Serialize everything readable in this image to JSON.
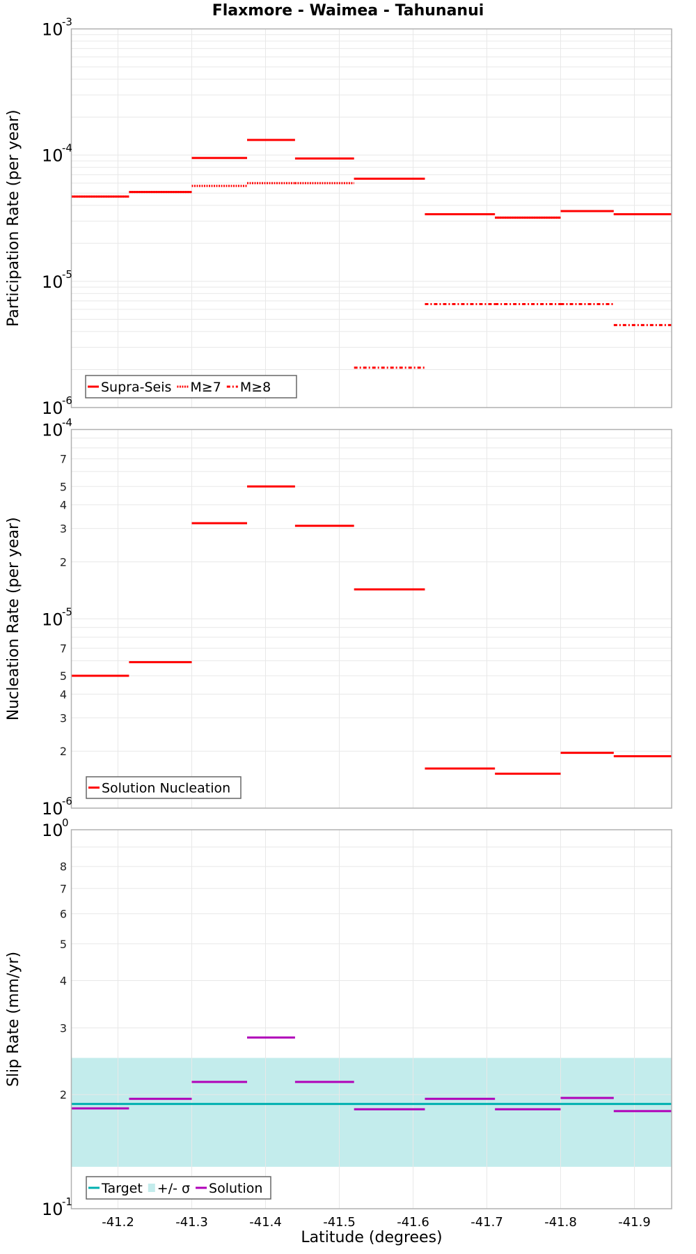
{
  "figure": {
    "title": "Flaxmore - Waimea - Tahunanui",
    "xlabel": "Latitude (degrees)",
    "x_ticks": [
      "-41.2",
      "-41.3",
      "-41.4",
      "-41.5",
      "-41.6",
      "-41.7",
      "-41.8",
      "-41.9"
    ]
  },
  "colors": {
    "supra_seis": "#ff0000",
    "target": "#00b0b0",
    "sigma_band": "#c3ecec",
    "solution_slip": "#b000b8",
    "grid": "#e8e8e8",
    "frame": "#b0b0b0"
  },
  "chart_data": [
    {
      "type": "line",
      "name": "participation",
      "title": "Flaxmore - Waimea - Tahunanui",
      "xlabel": "Latitude (degrees)",
      "ylabel": "Participation Rate (per year)",
      "yscale": "log",
      "ylim": [
        1e-06,
        0.001
      ],
      "xlim": [
        -41.137,
        -41.95
      ],
      "y_tick_labels": [
        {
          "base": "10",
          "exp": "-3"
        },
        {
          "base": "10",
          "exp": "-4"
        },
        {
          "base": "10",
          "exp": "-5"
        },
        {
          "base": "10",
          "exp": "-6"
        }
      ],
      "grid": true,
      "legend_position": "lower left",
      "legend": [
        "Supra-Seis",
        "M≥7",
        "M≥8"
      ],
      "segment_bounds": [
        -41.137,
        -41.215,
        -41.3,
        -41.375,
        -41.44,
        -41.52,
        -41.616,
        -41.711,
        -41.8,
        -41.872,
        -41.95
      ],
      "series": [
        {
          "name": "Supra-Seis",
          "style": "solid",
          "values": [
            4.7e-05,
            5.1e-05,
            9.5e-05,
            0.000132,
            9.4e-05,
            6.5e-05,
            3.4e-05,
            3.2e-05,
            3.6e-05,
            3.4e-05
          ]
        },
        {
          "name": "M≥7",
          "style": "dotted",
          "values": [
            4.7e-05,
            5.1e-05,
            5.7e-05,
            6e-05,
            6e-05,
            6.5e-05,
            3.4e-05,
            3.2e-05,
            3.6e-05,
            3.4e-05
          ]
        },
        {
          "name": "M≥8",
          "style": "dashdot",
          "values": [
            null,
            null,
            null,
            null,
            null,
            2.07e-06,
            6.6e-06,
            6.6e-06,
            6.6e-06,
            4.5e-06
          ]
        }
      ]
    },
    {
      "type": "line",
      "name": "nucleation",
      "ylabel": "Nucleation Rate (per year)",
      "yscale": "log",
      "ylim": [
        1e-06,
        0.0001
      ],
      "y_tick_labels": [
        {
          "base": "10",
          "exp": "-4"
        },
        {
          "base": "10",
          "exp": "-5"
        },
        {
          "base": "10",
          "exp": "-6"
        }
      ],
      "minor_tick_labels": [
        "7",
        "5",
        "4",
        "3",
        "2"
      ],
      "grid": true,
      "legend_position": "lower left",
      "legend": [
        "Solution Nucleation"
      ],
      "segment_bounds": [
        -41.137,
        -41.215,
        -41.3,
        -41.375,
        -41.44,
        -41.52,
        -41.616,
        -41.711,
        -41.8,
        -41.872,
        -41.95
      ],
      "series": [
        {
          "name": "Solution Nucleation",
          "style": "solid",
          "values": [
            5e-06,
            5.9e-06,
            3.2e-05,
            5e-05,
            3.1e-05,
            1.43e-05,
            1.62e-06,
            1.52e-06,
            1.96e-06,
            1.88e-06
          ]
        }
      ]
    },
    {
      "type": "line",
      "name": "slip_rate",
      "ylabel": "Slip Rate (mm/yr)",
      "yscale": "log",
      "ylim": [
        0.1,
        1.0
      ],
      "y_tick_labels": [
        {
          "base": "10",
          "exp": "0"
        },
        {
          "base": "10",
          "exp": "-1"
        }
      ],
      "minor_tick_labels": [
        "8",
        "7",
        "6",
        "5",
        "4",
        "3",
        "2"
      ],
      "grid": true,
      "legend_position": "lower left",
      "legend": [
        "Target",
        "+/- σ",
        "Solution"
      ],
      "segment_bounds": [
        -41.137,
        -41.215,
        -41.3,
        -41.375,
        -41.44,
        -41.52,
        -41.616,
        -41.711,
        -41.8,
        -41.872,
        -41.95
      ],
      "target": 0.189,
      "sigma_band": [
        0.129,
        0.25
      ],
      "series": [
        {
          "name": "Solution",
          "style": "solid",
          "values": [
            0.184,
            0.195,
            0.216,
            0.283,
            0.216,
            0.183,
            0.195,
            0.183,
            0.196,
            0.181
          ]
        }
      ]
    }
  ]
}
